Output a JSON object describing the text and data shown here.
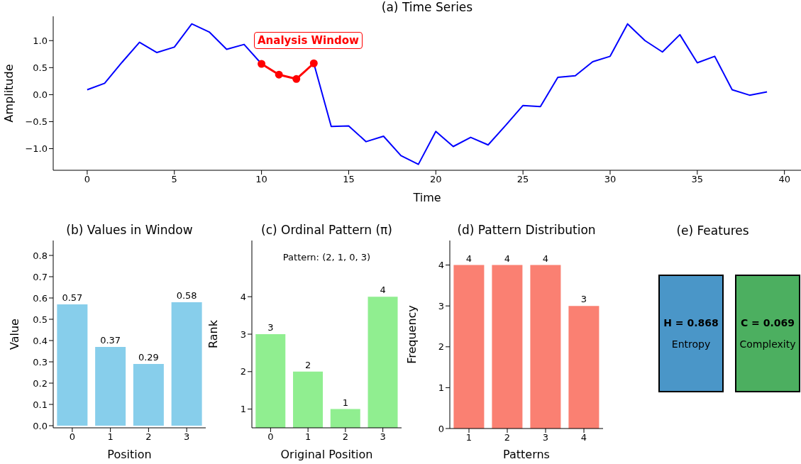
{
  "chart_data": [
    {
      "type": "line",
      "title": "(a) Time Series",
      "xlabel": "Time",
      "ylabel": "Amplitude",
      "series": [
        {
          "color": "#0000ff",
          "x": [
            0,
            1,
            2,
            3,
            4,
            5,
            6,
            7,
            8,
            9,
            10,
            11,
            12,
            13,
            14,
            15,
            16,
            17,
            18,
            19,
            20,
            21,
            22,
            23,
            24,
            25,
            26,
            27,
            28,
            29,
            30,
            31,
            32,
            33,
            34,
            35,
            36,
            37,
            38,
            39
          ],
          "values": [
            0.09,
            0.21,
            0.6,
            0.97,
            0.78,
            0.88,
            1.31,
            1.16,
            0.84,
            0.93,
            0.57,
            null,
            null,
            0.58,
            -0.59,
            -0.58,
            -0.87,
            -0.77,
            -1.13,
            -1.29,
            -0.68,
            -0.96,
            -0.79,
            -0.93,
            -0.57,
            -0.2,
            -0.22,
            0.32,
            0.35,
            0.61,
            0.71,
            1.31,
            1.0,
            0.79,
            1.11,
            0.59,
            0.71,
            0.09,
            -0.01,
            0.05
          ]
        },
        {
          "color": "#ff0000",
          "marker": "circle",
          "x": [
            10,
            11,
            12,
            13
          ],
          "values": [
            0.57,
            0.37,
            0.29,
            0.58
          ]
        }
      ],
      "annotations": [
        "Analysis Window"
      ],
      "xlim": [
        -1.95,
        40.95
      ],
      "xticks": [
        0,
        5,
        10,
        15,
        20,
        25,
        30,
        35,
        40
      ],
      "ylim": [
        -1.4,
        1.45
      ],
      "yticks": [
        {
          "value": -1,
          "label": "−1.0"
        },
        {
          "value": -0.5,
          "label": "−0.5"
        },
        {
          "value": 0,
          "label": "0.0"
        },
        0.5,
        {
          "value": 1,
          "label": "1.0"
        }
      ]
    },
    {
      "type": "bar",
      "title": "(b) Values in Window",
      "xlabel": "Position",
      "ylabel": "Value",
      "categories": [
        "0",
        "1",
        "2",
        "3"
      ],
      "values": [
        0.57,
        0.37,
        0.29,
        0.58
      ],
      "color": "#87ceeb",
      "data_labels": true,
      "ylim": [
        -0.01,
        0.87
      ],
      "yticks": [
        {
          "value": 0,
          "label": "0.0"
        },
        0.1,
        0.2,
        0.3,
        0.4,
        0.5,
        0.6,
        0.7,
        0.8
      ]
    },
    {
      "type": "bar",
      "title": "(c) Ordinal Pattern (π)",
      "xlabel": "Original Position",
      "ylabel": "Rank",
      "categories": [
        "0",
        "1",
        "2",
        "3"
      ],
      "values": [
        3,
        2,
        1,
        4
      ],
      "color": "#90ee90",
      "data_labels": true,
      "annotations": [
        "Pattern: (2, 1, 0, 3)"
      ],
      "ylim": [
        0.5,
        5.5
      ],
      "yticks": [
        1,
        2,
        3,
        4
      ]
    },
    {
      "type": "bar",
      "title": "(d) Pattern Distribution",
      "xlabel": "Patterns",
      "ylabel": "Frequency",
      "categories": [
        "1",
        "2",
        "3",
        "4"
      ],
      "values": [
        4,
        4,
        4,
        3
      ],
      "color": "#fa8072",
      "data_labels": true,
      "ylim": [
        0,
        4.6
      ],
      "yticks": [
        0,
        1,
        2,
        3,
        4
      ]
    },
    {
      "type": "other",
      "title": "(e) Features",
      "annotations": [
        "H = 0.868",
        "Entropy",
        "C = 0.069",
        "Complexity"
      ],
      "colors": [
        "#4a96c8",
        "#4caf60"
      ]
    }
  ]
}
